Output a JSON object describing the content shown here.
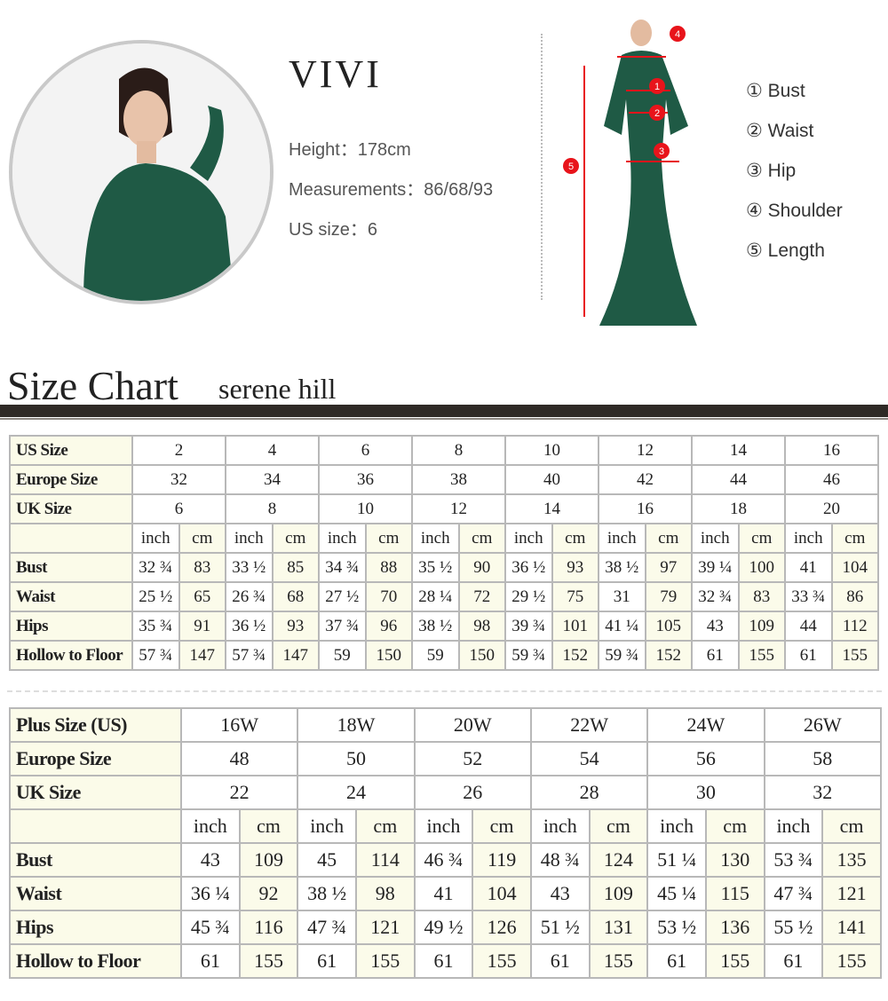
{
  "model": {
    "name": "VIVI",
    "height": "Height：178cm",
    "measurements": "Measurements：86/68/93",
    "us_size": "US size：6"
  },
  "legend": [
    {
      "num": "1",
      "label": "① Bust"
    },
    {
      "num": "2",
      "label": "② Waist"
    },
    {
      "num": "3",
      "label": "③ Hip"
    },
    {
      "num": "4",
      "label": "④ Shoulder"
    },
    {
      "num": "5",
      "label": "⑤ Length"
    }
  ],
  "colors": {
    "marker": "#e8141b",
    "dress": "#1f5a45",
    "header_bar": "#2f2a26",
    "cell_tint": "#fbfbea"
  },
  "title": "Size Chart",
  "subtitle": "serene hill",
  "standard_table": {
    "header_rows": [
      {
        "label": "US Size",
        "values": [
          "2",
          "4",
          "6",
          "8",
          "10",
          "12",
          "14",
          "16"
        ]
      },
      {
        "label": "Europe Size",
        "values": [
          "32",
          "34",
          "36",
          "38",
          "40",
          "42",
          "44",
          "46"
        ]
      },
      {
        "label": "UK Size",
        "values": [
          "6",
          "8",
          "10",
          "12",
          "14",
          "16",
          "18",
          "20"
        ]
      }
    ],
    "unit_inch": "inch",
    "unit_cm": "cm",
    "rows": [
      {
        "label": "Bust",
        "values": [
          [
            "32 ¾",
            "83"
          ],
          [
            "33 ½",
            "85"
          ],
          [
            "34 ¾",
            "88"
          ],
          [
            "35 ½",
            "90"
          ],
          [
            "36 ½",
            "93"
          ],
          [
            "38 ½",
            "97"
          ],
          [
            "39 ¼",
            "100"
          ],
          [
            "41",
            "104"
          ]
        ]
      },
      {
        "label": "Waist",
        "values": [
          [
            "25 ½",
            "65"
          ],
          [
            "26 ¾",
            "68"
          ],
          [
            "27 ½",
            "70"
          ],
          [
            "28 ¼",
            "72"
          ],
          [
            "29 ½",
            "75"
          ],
          [
            "31",
            "79"
          ],
          [
            "32 ¾",
            "83"
          ],
          [
            "33 ¾",
            "86"
          ]
        ]
      },
      {
        "label": "Hips",
        "values": [
          [
            "35 ¾",
            "91"
          ],
          [
            "36 ½",
            "93"
          ],
          [
            "37 ¾",
            "96"
          ],
          [
            "38 ½",
            "98"
          ],
          [
            "39 ¾",
            "101"
          ],
          [
            "41 ¼",
            "105"
          ],
          [
            "43",
            "109"
          ],
          [
            "44",
            "112"
          ]
        ]
      },
      {
        "label": "Hollow to Floor",
        "values": [
          [
            "57 ¾",
            "147"
          ],
          [
            "57 ¾",
            "147"
          ],
          [
            "59",
            "150"
          ],
          [
            "59",
            "150"
          ],
          [
            "59 ¾",
            "152"
          ],
          [
            "59 ¾",
            "152"
          ],
          [
            "61",
            "155"
          ],
          [
            "61",
            "155"
          ]
        ]
      }
    ]
  },
  "plus_table": {
    "header_rows": [
      {
        "label": "Plus Size (US)",
        "values": [
          "16W",
          "18W",
          "20W",
          "22W",
          "24W",
          "26W"
        ]
      },
      {
        "label": "Europe Size",
        "values": [
          "48",
          "50",
          "52",
          "54",
          "56",
          "58"
        ]
      },
      {
        "label": "UK Size",
        "values": [
          "22",
          "24",
          "26",
          "28",
          "30",
          "32"
        ]
      }
    ],
    "unit_inch": "inch",
    "unit_cm": "cm",
    "rows": [
      {
        "label": "Bust",
        "values": [
          [
            "43",
            "109"
          ],
          [
            "45",
            "114"
          ],
          [
            "46 ¾",
            "119"
          ],
          [
            "48 ¾",
            "124"
          ],
          [
            "51 ¼",
            "130"
          ],
          [
            "53 ¾",
            "135"
          ]
        ]
      },
      {
        "label": "Waist",
        "values": [
          [
            "36 ¼",
            "92"
          ],
          [
            "38 ½",
            "98"
          ],
          [
            "41",
            "104"
          ],
          [
            "43",
            "109"
          ],
          [
            "45 ¼",
            "115"
          ],
          [
            "47 ¾",
            "121"
          ]
        ]
      },
      {
        "label": "Hips",
        "values": [
          [
            "45 ¾",
            "116"
          ],
          [
            "47 ¾",
            "121"
          ],
          [
            "49 ½",
            "126"
          ],
          [
            "51 ½",
            "131"
          ],
          [
            "53 ½",
            "136"
          ],
          [
            "55 ½",
            "141"
          ]
        ]
      },
      {
        "label": "Hollow to Floor",
        "values": [
          [
            "61",
            "155"
          ],
          [
            "61",
            "155"
          ],
          [
            "61",
            "155"
          ],
          [
            "61",
            "155"
          ],
          [
            "61",
            "155"
          ],
          [
            "61",
            "155"
          ]
        ]
      }
    ]
  }
}
